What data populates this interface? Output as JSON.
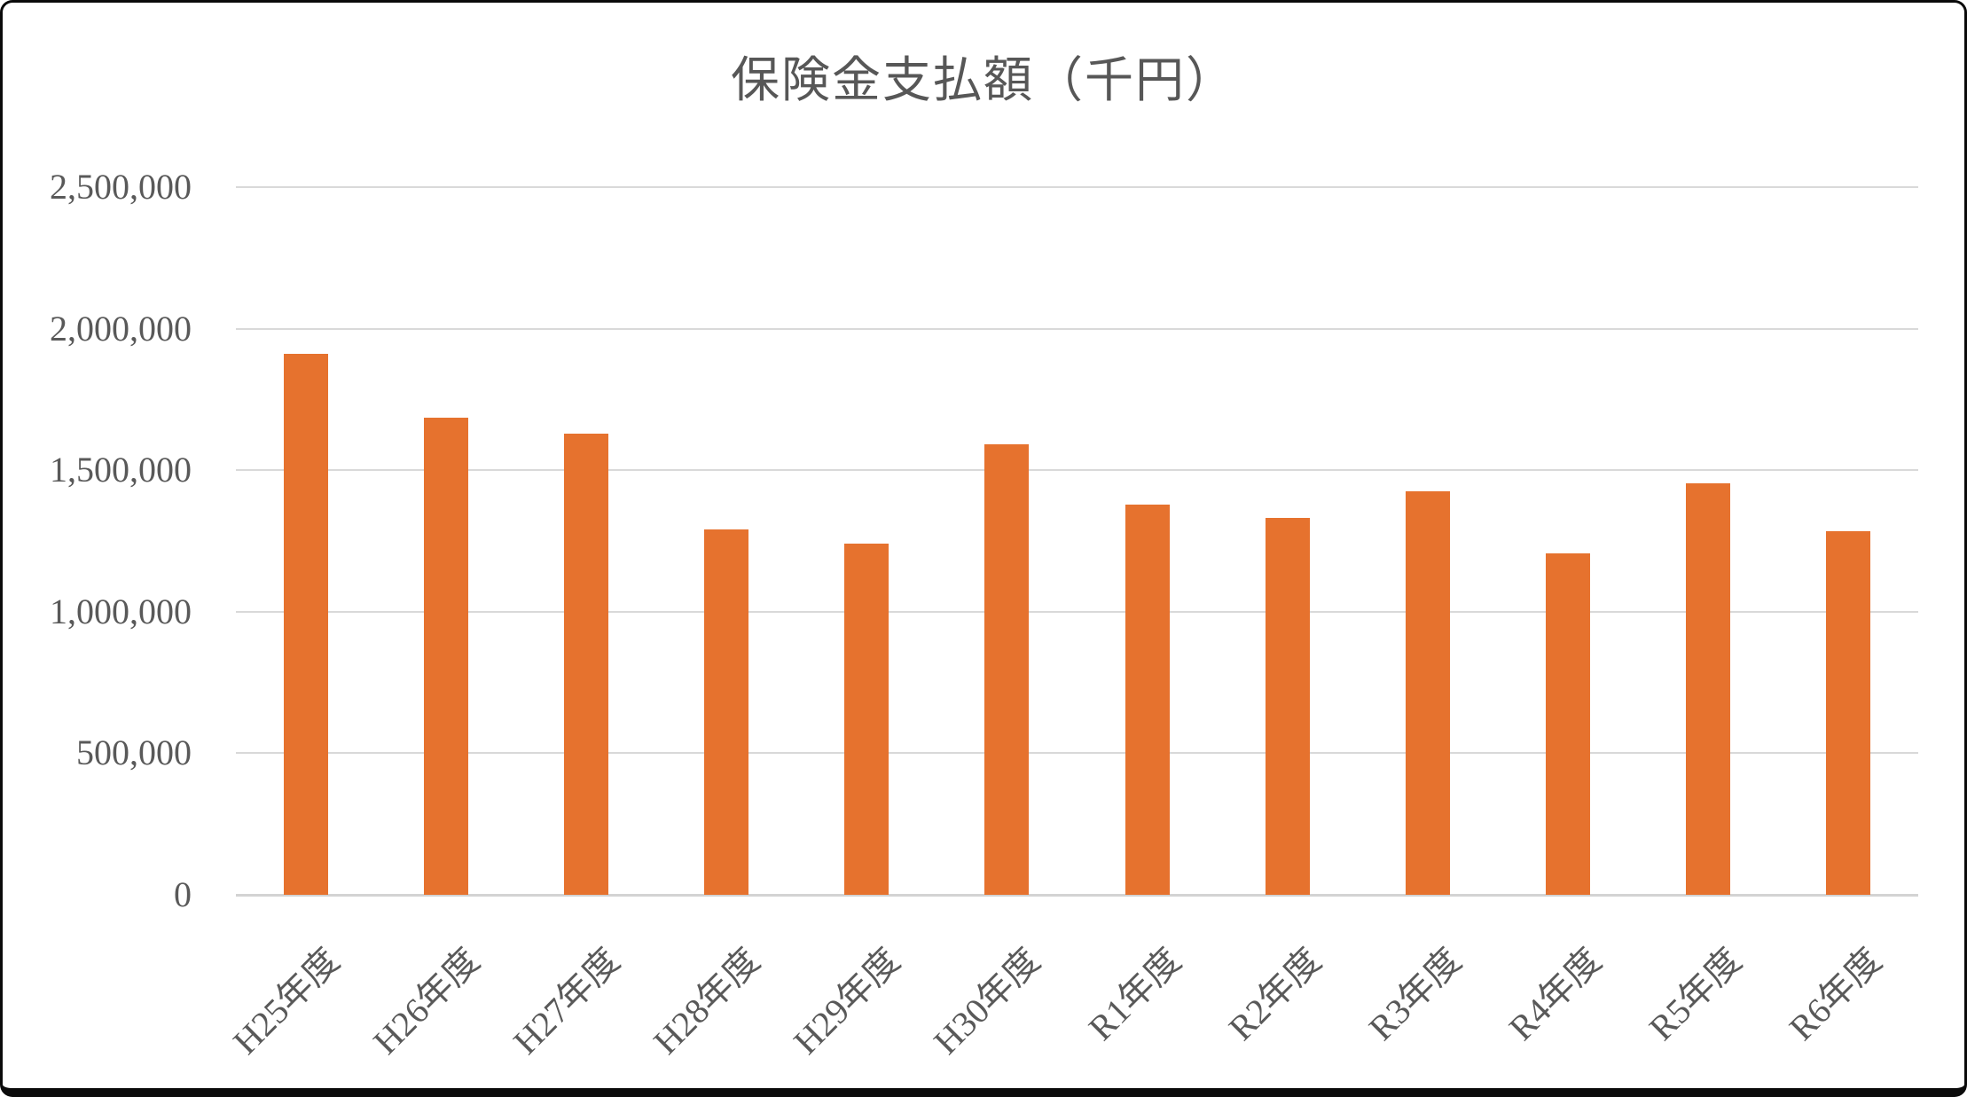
{
  "chart_data": {
    "type": "bar",
    "title": "保険金支払額（千円）",
    "categories": [
      "H25年度",
      "H26年度",
      "H27年度",
      "H28年度",
      "H29年度",
      "H30年度",
      "R1年度",
      "R2年度",
      "R3年度",
      "R4年度",
      "R5年度",
      "R6年度"
    ],
    "values": [
      1910000,
      1685000,
      1630000,
      1290000,
      1240000,
      1590000,
      1380000,
      1330000,
      1425000,
      1205000,
      1455000,
      1285000
    ],
    "series_name": "保険金支払額",
    "xlabel": "",
    "ylabel": "",
    "ylim": [
      0,
      2500000
    ],
    "ytick_step": 500000,
    "ytick_labels_top_to_bottom": [
      "2,500,000",
      "2,000,000",
      "1,500,000",
      "1,000,000",
      "500,000",
      "0"
    ],
    "grid": "horizontal",
    "legend": "none",
    "colors": {
      "bar": "#e6722e",
      "gridline": "#d9d9d9",
      "axis_line": "#d3d3d3",
      "tick_text": "#595959",
      "title_text": "#575757",
      "background": "#ffffff",
      "frame_border": "#0b0b0b"
    }
  }
}
